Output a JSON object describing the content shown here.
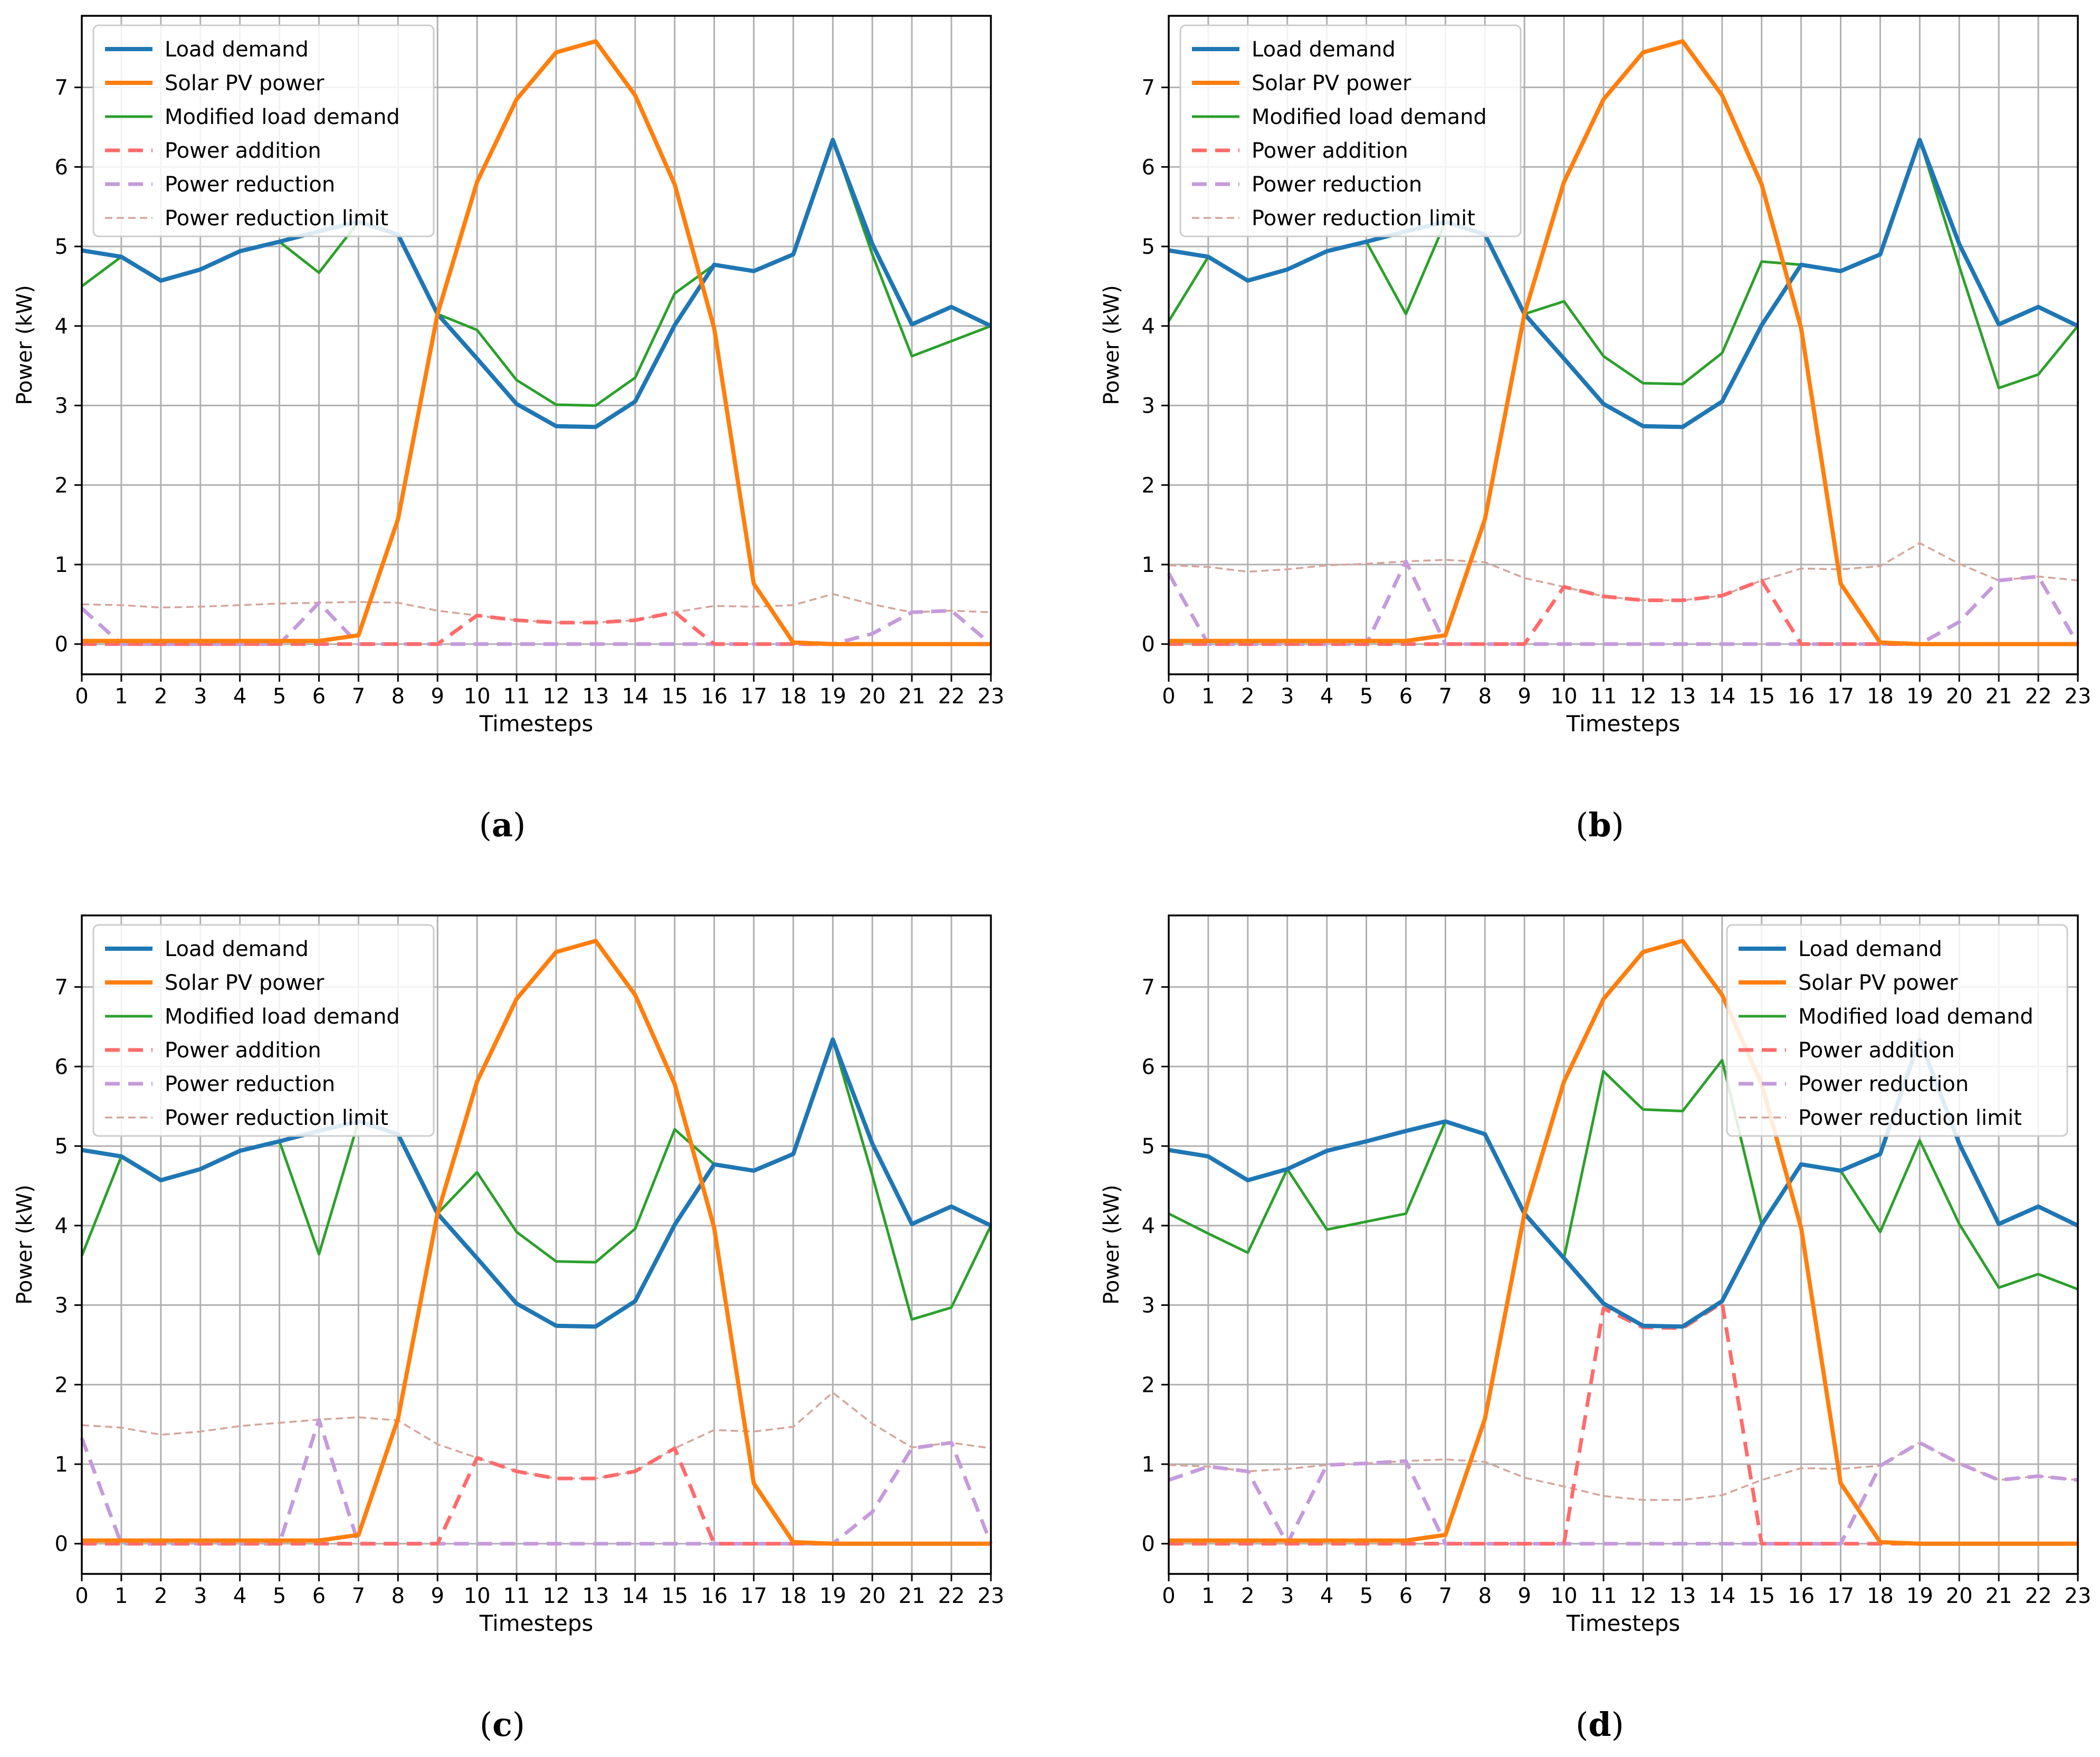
{
  "figure": {
    "panel_captions": [
      {
        "open": "(",
        "letter": "a",
        "close": ")"
      },
      {
        "open": "(",
        "letter": "b",
        "close": ")"
      },
      {
        "open": "(",
        "letter": "c",
        "close": ")"
      },
      {
        "open": "(",
        "letter": "d",
        "close": ")"
      }
    ]
  },
  "colors": {
    "load_demand": "#1f77b4",
    "solar_pv": "#ff7f0e",
    "modified_load": "#2ca02c",
    "power_addition": "#ff6b6b",
    "power_reduction": "#c59bdb",
    "power_reduction_limit": "#d4a59a",
    "grid": "#b0b0b0"
  },
  "chart_data": [
    {
      "type": "line",
      "panel": "a",
      "xlabel": "Timesteps",
      "ylabel": "Power (kW)",
      "x": [
        0,
        1,
        2,
        3,
        4,
        5,
        6,
        7,
        8,
        9,
        10,
        11,
        12,
        13,
        14,
        15,
        16,
        17,
        18,
        19,
        20,
        21,
        22,
        23
      ],
      "xticks": [
        "0",
        "1",
        "2",
        "3",
        "4",
        "5",
        "6",
        "7",
        "8",
        "9",
        "10",
        "11",
        "12",
        "13",
        "14",
        "15",
        "16",
        "17",
        "18",
        "19",
        "20",
        "21",
        "22",
        "23"
      ],
      "yticks": [
        "0",
        "1",
        "2",
        "3",
        "4",
        "5",
        "6",
        "7"
      ],
      "xlim": [
        0,
        23
      ],
      "ylim": [
        -0.38,
        7.9
      ],
      "grid": true,
      "legend_position": "top-left",
      "series": [
        {
          "name": "Load demand",
          "values": [
            4.95,
            4.87,
            4.57,
            4.71,
            4.94,
            5.06,
            5.19,
            5.31,
            5.15,
            4.15,
            3.59,
            3.02,
            2.74,
            2.73,
            3.05,
            4.01,
            4.77,
            4.69,
            4.9,
            6.34,
            5.03,
            4.02,
            4.24,
            4.0
          ]
        },
        {
          "name": "Solar PV power",
          "values": [
            0.04,
            0.04,
            0.04,
            0.04,
            0.04,
            0.04,
            0.04,
            0.11,
            1.57,
            4.15,
            5.81,
            6.85,
            7.44,
            7.58,
            6.9,
            5.78,
            3.97,
            0.76,
            0.02,
            0.0,
            0.0,
            0.0,
            0.0,
            0.0
          ]
        },
        {
          "name": "Modified load demand",
          "values": [
            4.5,
            4.87,
            4.57,
            4.71,
            4.94,
            5.06,
            4.67,
            5.31,
            5.15,
            4.15,
            3.95,
            3.32,
            3.01,
            3.0,
            3.35,
            4.41,
            4.77,
            4.69,
            4.9,
            6.34,
            4.9,
            3.62,
            3.81,
            4.0
          ]
        },
        {
          "name": "Power addition",
          "values": [
            0.0,
            0.0,
            0.0,
            0.0,
            0.0,
            0.0,
            0.0,
            0.0,
            0.0,
            0.0,
            0.36,
            0.3,
            0.27,
            0.27,
            0.3,
            0.4,
            0.0,
            0.0,
            0.0,
            0.0,
            0.0,
            0.0,
            0.0,
            0.0
          ]
        },
        {
          "name": "Power reduction",
          "values": [
            0.45,
            0.0,
            0.0,
            0.0,
            0.0,
            0.0,
            0.52,
            0.0,
            0.0,
            0.0,
            0.0,
            0.0,
            0.0,
            0.0,
            0.0,
            0.0,
            0.0,
            0.0,
            0.0,
            0.0,
            0.13,
            0.4,
            0.42,
            0.0
          ]
        },
        {
          "name": "Power reduction limit",
          "values": [
            0.5,
            0.49,
            0.46,
            0.47,
            0.49,
            0.51,
            0.52,
            0.53,
            0.52,
            0.42,
            0.36,
            0.3,
            0.27,
            0.27,
            0.3,
            0.4,
            0.48,
            0.47,
            0.49,
            0.63,
            0.5,
            0.4,
            0.42,
            0.4
          ]
        }
      ]
    },
    {
      "type": "line",
      "panel": "b",
      "xlabel": "Timesteps",
      "ylabel": "Power (kW)",
      "x": [
        0,
        1,
        2,
        3,
        4,
        5,
        6,
        7,
        8,
        9,
        10,
        11,
        12,
        13,
        14,
        15,
        16,
        17,
        18,
        19,
        20,
        21,
        22,
        23
      ],
      "xticks": [
        "0",
        "1",
        "2",
        "3",
        "4",
        "5",
        "6",
        "7",
        "8",
        "9",
        "10",
        "11",
        "12",
        "13",
        "14",
        "15",
        "16",
        "17",
        "18",
        "19",
        "20",
        "21",
        "22",
        "23"
      ],
      "yticks": [
        "0",
        "1",
        "2",
        "3",
        "4",
        "5",
        "6",
        "7"
      ],
      "xlim": [
        0,
        23
      ],
      "ylim": [
        -0.38,
        7.9
      ],
      "grid": true,
      "legend_position": "top-left",
      "series": [
        {
          "name": "Load demand",
          "values": [
            4.95,
            4.87,
            4.57,
            4.71,
            4.94,
            5.06,
            5.19,
            5.31,
            5.15,
            4.15,
            3.59,
            3.02,
            2.74,
            2.73,
            3.05,
            4.01,
            4.77,
            4.69,
            4.9,
            6.34,
            5.03,
            4.02,
            4.24,
            4.0
          ]
        },
        {
          "name": "Solar PV power",
          "values": [
            0.04,
            0.04,
            0.04,
            0.04,
            0.04,
            0.04,
            0.04,
            0.11,
            1.57,
            4.15,
            5.81,
            6.85,
            7.44,
            7.58,
            6.9,
            5.78,
            3.97,
            0.76,
            0.02,
            0.0,
            0.0,
            0.0,
            0.0,
            0.0
          ]
        },
        {
          "name": "Modified load demand",
          "values": [
            4.06,
            4.87,
            4.57,
            4.71,
            4.94,
            5.06,
            4.15,
            5.31,
            5.15,
            4.15,
            4.31,
            3.62,
            3.28,
            3.27,
            3.66,
            4.81,
            4.77,
            4.69,
            4.9,
            6.34,
            4.75,
            3.22,
            3.39,
            4.0
          ]
        },
        {
          "name": "Power addition",
          "values": [
            0.0,
            0.0,
            0.0,
            0.0,
            0.0,
            0.0,
            0.0,
            0.0,
            0.0,
            0.0,
            0.72,
            0.6,
            0.55,
            0.55,
            0.61,
            0.8,
            0.0,
            0.0,
            0.0,
            0.0,
            0.0,
            0.0,
            0.0,
            0.0
          ]
        },
        {
          "name": "Power reduction",
          "values": [
            0.89,
            0.0,
            0.0,
            0.0,
            0.0,
            0.0,
            1.04,
            0.0,
            0.0,
            0.0,
            0.0,
            0.0,
            0.0,
            0.0,
            0.0,
            0.0,
            0.0,
            0.0,
            0.0,
            0.0,
            0.28,
            0.8,
            0.85,
            0.0
          ]
        },
        {
          "name": "Power reduction limit",
          "values": [
            0.99,
            0.97,
            0.91,
            0.94,
            0.99,
            1.01,
            1.04,
            1.06,
            1.03,
            0.83,
            0.72,
            0.6,
            0.55,
            0.55,
            0.61,
            0.8,
            0.95,
            0.94,
            0.98,
            1.27,
            1.01,
            0.8,
            0.85,
            0.8
          ]
        }
      ]
    },
    {
      "type": "line",
      "panel": "c",
      "xlabel": "Timesteps",
      "ylabel": "Power (kW)",
      "x": [
        0,
        1,
        2,
        3,
        4,
        5,
        6,
        7,
        8,
        9,
        10,
        11,
        12,
        13,
        14,
        15,
        16,
        17,
        18,
        19,
        20,
        21,
        22,
        23
      ],
      "xticks": [
        "0",
        "1",
        "2",
        "3",
        "4",
        "5",
        "6",
        "7",
        "8",
        "9",
        "10",
        "11",
        "12",
        "13",
        "14",
        "15",
        "16",
        "17",
        "18",
        "19",
        "20",
        "21",
        "22",
        "23"
      ],
      "yticks": [
        "0",
        "1",
        "2",
        "3",
        "4",
        "5",
        "6",
        "7"
      ],
      "xlim": [
        0,
        23
      ],
      "ylim": [
        -0.38,
        7.9
      ],
      "grid": true,
      "legend_position": "top-left",
      "series": [
        {
          "name": "Load demand",
          "values": [
            4.95,
            4.87,
            4.57,
            4.71,
            4.94,
            5.06,
            5.19,
            5.31,
            5.15,
            4.15,
            3.59,
            3.02,
            2.74,
            2.73,
            3.05,
            4.01,
            4.77,
            4.69,
            4.9,
            6.34,
            5.03,
            4.02,
            4.24,
            4.0
          ]
        },
        {
          "name": "Solar PV power",
          "values": [
            0.04,
            0.04,
            0.04,
            0.04,
            0.04,
            0.04,
            0.04,
            0.11,
            1.57,
            4.15,
            5.81,
            6.85,
            7.44,
            7.58,
            6.9,
            5.78,
            3.97,
            0.76,
            0.02,
            0.0,
            0.0,
            0.0,
            0.0,
            0.0
          ]
        },
        {
          "name": "Modified load demand",
          "values": [
            3.62,
            4.87,
            4.57,
            4.71,
            4.94,
            5.06,
            3.64,
            5.31,
            5.15,
            4.15,
            4.67,
            3.92,
            3.55,
            3.54,
            3.96,
            5.21,
            4.77,
            4.69,
            4.9,
            6.34,
            4.63,
            2.82,
            2.97,
            4.0
          ]
        },
        {
          "name": "Power addition",
          "values": [
            0.0,
            0.0,
            0.0,
            0.0,
            0.0,
            0.0,
            0.0,
            0.0,
            0.0,
            0.0,
            1.08,
            0.91,
            0.82,
            0.82,
            0.91,
            1.2,
            0.0,
            0.0,
            0.0,
            0.0,
            0.0,
            0.0,
            0.0,
            0.0
          ]
        },
        {
          "name": "Power reduction",
          "values": [
            1.33,
            0.0,
            0.0,
            0.0,
            0.0,
            0.0,
            1.56,
            0.0,
            0.0,
            0.0,
            0.0,
            0.0,
            0.0,
            0.0,
            0.0,
            0.0,
            0.0,
            0.0,
            0.0,
            0.0,
            0.4,
            1.2,
            1.27,
            0.0
          ]
        },
        {
          "name": "Power reduction limit",
          "values": [
            1.49,
            1.46,
            1.37,
            1.41,
            1.48,
            1.52,
            1.56,
            1.59,
            1.55,
            1.25,
            1.08,
            0.91,
            0.82,
            0.82,
            0.91,
            1.2,
            1.43,
            1.41,
            1.47,
            1.9,
            1.51,
            1.21,
            1.27,
            1.2
          ]
        }
      ]
    },
    {
      "type": "line",
      "panel": "d",
      "xlabel": "Timesteps",
      "ylabel": "Power (kW)",
      "x": [
        0,
        1,
        2,
        3,
        4,
        5,
        6,
        7,
        8,
        9,
        10,
        11,
        12,
        13,
        14,
        15,
        16,
        17,
        18,
        19,
        20,
        21,
        22,
        23
      ],
      "xticks": [
        "0",
        "1",
        "2",
        "3",
        "4",
        "5",
        "6",
        "7",
        "8",
        "9",
        "10",
        "11",
        "12",
        "13",
        "14",
        "15",
        "16",
        "17",
        "18",
        "19",
        "20",
        "21",
        "22",
        "23"
      ],
      "yticks": [
        "0",
        "1",
        "2",
        "3",
        "4",
        "5",
        "6",
        "7"
      ],
      "xlim": [
        0,
        23
      ],
      "ylim": [
        -0.38,
        7.9
      ],
      "grid": true,
      "legend_position": "top-right",
      "series": [
        {
          "name": "Load demand",
          "values": [
            4.95,
            4.87,
            4.57,
            4.71,
            4.94,
            5.06,
            5.19,
            5.31,
            5.15,
            4.15,
            3.59,
            3.02,
            2.74,
            2.73,
            3.05,
            4.01,
            4.77,
            4.69,
            4.9,
            6.34,
            5.03,
            4.02,
            4.24,
            4.0
          ]
        },
        {
          "name": "Solar PV power",
          "values": [
            0.04,
            0.04,
            0.04,
            0.04,
            0.04,
            0.04,
            0.04,
            0.11,
            1.57,
            4.15,
            5.81,
            6.85,
            7.44,
            7.58,
            6.9,
            5.78,
            3.97,
            0.76,
            0.02,
            0.0,
            0.0,
            0.0,
            0.0,
            0.0
          ]
        },
        {
          "name": "Modified load demand",
          "values": [
            4.15,
            3.9,
            3.66,
            4.71,
            3.95,
            4.05,
            4.15,
            5.31,
            5.15,
            4.15,
            3.59,
            5.94,
            5.46,
            5.44,
            6.08,
            4.01,
            4.77,
            4.69,
            3.92,
            5.07,
            4.02,
            3.22,
            3.39,
            3.2
          ]
        },
        {
          "name": "Power addition",
          "values": [
            0.0,
            0.0,
            0.0,
            0.0,
            0.0,
            0.0,
            0.0,
            0.0,
            0.0,
            0.0,
            0.0,
            2.96,
            2.72,
            2.71,
            3.03,
            0.0,
            0.0,
            0.0,
            0.0,
            0.0,
            0.0,
            0.0,
            0.0,
            0.0
          ]
        },
        {
          "name": "Power reduction",
          "values": [
            0.8,
            0.97,
            0.91,
            0.0,
            0.99,
            1.01,
            1.04,
            0.0,
            0.0,
            0.0,
            0.0,
            0.0,
            0.0,
            0.0,
            0.0,
            0.0,
            0.0,
            0.0,
            0.98,
            1.27,
            1.01,
            0.8,
            0.85,
            0.8
          ]
        },
        {
          "name": "Power reduction limit",
          "values": [
            0.99,
            0.97,
            0.91,
            0.94,
            0.99,
            1.01,
            1.04,
            1.06,
            1.03,
            0.83,
            0.72,
            0.6,
            0.55,
            0.55,
            0.61,
            0.8,
            0.95,
            0.94,
            0.98,
            1.27,
            1.01,
            0.8,
            0.85,
            0.8
          ]
        }
      ]
    }
  ]
}
